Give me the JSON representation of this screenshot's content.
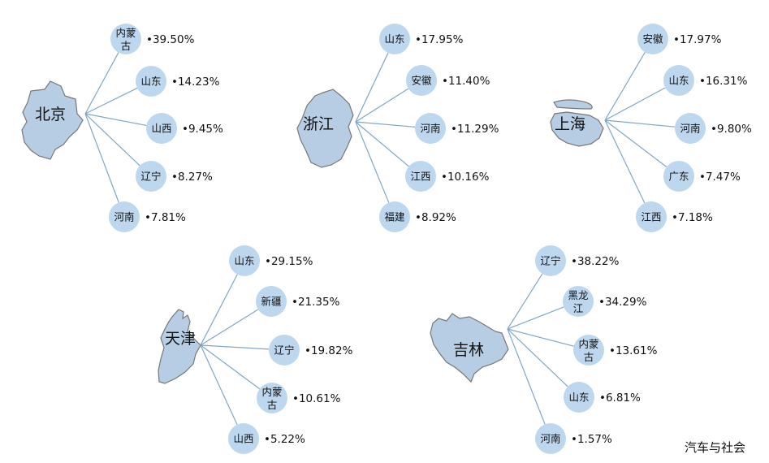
{
  "credit": "汽车与社会",
  "colors": {
    "node": "#bdd7ee",
    "line": "#7fa6c9",
    "map": "#b7cde3",
    "map_stroke": "#777777",
    "text": "#111111"
  },
  "groups": [
    {
      "name": "北京",
      "items": [
        {
          "province": "内蒙古",
          "pct": "39.50%"
        },
        {
          "province": "山东",
          "pct": "14.23%"
        },
        {
          "province": "山西",
          "pct": "9.45%"
        },
        {
          "province": "辽宁",
          "pct": "8.27%"
        },
        {
          "province": "河南",
          "pct": "7.81%"
        }
      ]
    },
    {
      "name": "浙江",
      "items": [
        {
          "province": "山东",
          "pct": "17.95%"
        },
        {
          "province": "安徽",
          "pct": "11.40%"
        },
        {
          "province": "河南",
          "pct": "11.29%"
        },
        {
          "province": "江西",
          "pct": "10.16%"
        },
        {
          "province": "福建",
          "pct": "8.92%"
        }
      ]
    },
    {
      "name": "上海",
      "items": [
        {
          "province": "安徽",
          "pct": "17.97%"
        },
        {
          "province": "山东",
          "pct": "16.31%"
        },
        {
          "province": "河南",
          "pct": "9.80%"
        },
        {
          "province": "广东",
          "pct": "7.47%"
        },
        {
          "province": "江西",
          "pct": "7.18%"
        }
      ]
    },
    {
      "name": "天津",
      "items": [
        {
          "province": "山东",
          "pct": "29.15%"
        },
        {
          "province": "新疆",
          "pct": "21.35%"
        },
        {
          "province": "辽宁",
          "pct": "19.82%"
        },
        {
          "province": "内蒙古",
          "pct": "10.61%"
        },
        {
          "province": "山西",
          "pct": "5.22%"
        }
      ]
    },
    {
      "name": "吉林",
      "items": [
        {
          "province": "辽宁",
          "pct": "38.22%"
        },
        {
          "province": "黑龙江",
          "pct": "34.29%"
        },
        {
          "province": "内蒙古",
          "pct": "13.61%"
        },
        {
          "province": "山东",
          "pct": "6.81%"
        },
        {
          "province": "河南",
          "pct": "1.57%"
        }
      ]
    }
  ]
}
